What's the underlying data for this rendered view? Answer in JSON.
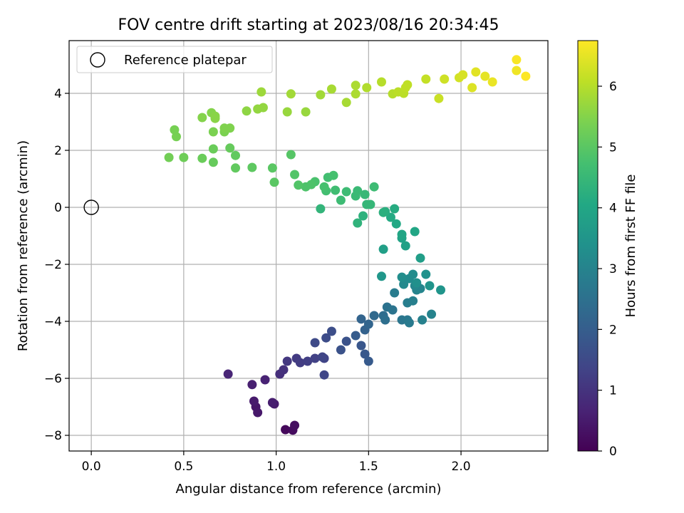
{
  "chart_data": {
    "type": "scatter",
    "title": "FOV centre drift starting at 2023/08/16 20:34:45",
    "xlabel": "Angular distance from reference (arcmin)",
    "ylabel": "Rotation from reference (arcmin)",
    "xlim": [
      -0.12,
      2.47
    ],
    "ylim": [
      -8.55,
      5.85
    ],
    "xticks": [
      0.0,
      0.5,
      1.0,
      1.5,
      2.0
    ],
    "xtick_labels": [
      "0.0",
      "0.5",
      "1.0",
      "1.5",
      "2.0"
    ],
    "yticks": [
      -8,
      -6,
      -4,
      -2,
      0,
      2,
      4
    ],
    "ytick_labels": [
      "−8",
      "−6",
      "−4",
      "−2",
      "0",
      "2",
      "4"
    ],
    "grid": true,
    "legend": {
      "position": "top-left",
      "entries": [
        "Reference platepar"
      ]
    },
    "reference_point": {
      "x": 0.0,
      "y": 0.0,
      "label": "Reference platepar"
    },
    "colorbar": {
      "label": "Hours from first FF file",
      "range": [
        0,
        6.75
      ],
      "ticks": [
        0,
        1,
        2,
        3,
        4,
        5,
        6
      ],
      "tick_labels": [
        "0",
        "1",
        "2",
        "3",
        "4",
        "5",
        "6"
      ],
      "colormap": "viridis"
    },
    "series": [
      {
        "points": [
          [
            1.05,
            -7.8,
            0.15
          ],
          [
            1.09,
            -7.82,
            0.2
          ],
          [
            1.1,
            -7.65,
            0.25
          ],
          [
            0.89,
            -7.0,
            0.4
          ],
          [
            0.9,
            -7.2,
            0.45
          ],
          [
            0.88,
            -6.8,
            0.5
          ],
          [
            0.99,
            -6.9,
            0.5
          ],
          [
            0.98,
            -6.85,
            0.55
          ],
          [
            0.87,
            -6.22,
            0.6
          ],
          [
            0.94,
            -6.05,
            0.65
          ],
          [
            0.74,
            -5.85,
            0.7
          ],
          [
            1.02,
            -5.85,
            0.9
          ],
          [
            1.04,
            -5.7,
            0.95
          ],
          [
            1.06,
            -5.4,
            1.1
          ],
          [
            1.11,
            -5.3,
            1.15
          ],
          [
            1.13,
            -5.45,
            1.2
          ],
          [
            1.17,
            -5.4,
            1.25
          ],
          [
            1.21,
            -5.3,
            1.3
          ],
          [
            1.26,
            -5.3,
            1.35
          ],
          [
            1.26,
            -5.88,
            1.4
          ],
          [
            1.25,
            -5.25,
            1.4
          ],
          [
            1.21,
            -4.75,
            1.5
          ],
          [
            1.27,
            -4.58,
            1.55
          ],
          [
            1.3,
            -4.35,
            1.6
          ],
          [
            1.35,
            -5.0,
            1.7
          ],
          [
            1.38,
            -4.7,
            1.7
          ],
          [
            1.46,
            -4.85,
            1.8
          ],
          [
            1.48,
            -5.15,
            1.85
          ],
          [
            1.5,
            -5.4,
            1.9
          ],
          [
            1.43,
            -4.5,
            1.95
          ],
          [
            1.48,
            -4.3,
            2.1
          ],
          [
            1.46,
            -3.92,
            2.15
          ],
          [
            1.5,
            -4.1,
            2.2
          ],
          [
            1.53,
            -3.8,
            2.3
          ],
          [
            1.58,
            -3.8,
            2.4
          ],
          [
            1.59,
            -3.95,
            2.45
          ],
          [
            1.6,
            -3.5,
            2.55
          ],
          [
            1.63,
            -3.6,
            2.6
          ],
          [
            1.68,
            -3.95,
            2.65
          ],
          [
            1.71,
            -3.95,
            2.7
          ],
          [
            1.72,
            -4.05,
            2.75
          ],
          [
            1.64,
            -3.0,
            2.8
          ],
          [
            1.71,
            -3.35,
            2.85
          ],
          [
            1.74,
            -3.28,
            2.9
          ],
          [
            1.79,
            -3.95,
            2.95
          ],
          [
            1.84,
            -3.75,
            3.0
          ],
          [
            1.76,
            -2.9,
            3.0
          ],
          [
            1.78,
            -2.85,
            3.05
          ],
          [
            1.75,
            -2.75,
            3.1
          ],
          [
            1.69,
            -2.7,
            3.15
          ],
          [
            1.72,
            -2.5,
            3.2
          ],
          [
            1.74,
            -2.35,
            3.25
          ],
          [
            1.68,
            -2.45,
            3.3
          ],
          [
            1.76,
            -2.65,
            3.35
          ],
          [
            1.81,
            -2.35,
            3.4
          ],
          [
            1.83,
            -2.75,
            3.45
          ],
          [
            1.89,
            -2.9,
            3.5
          ],
          [
            1.57,
            -2.42,
            3.55
          ],
          [
            1.78,
            -1.78,
            3.75
          ],
          [
            1.58,
            -1.47,
            3.8
          ],
          [
            1.7,
            -1.35,
            3.85
          ],
          [
            1.68,
            -1.08,
            3.9
          ],
          [
            1.68,
            -0.95,
            3.95
          ],
          [
            1.75,
            -0.85,
            4.0
          ],
          [
            1.65,
            -0.58,
            4.05
          ],
          [
            1.62,
            -0.35,
            4.1
          ],
          [
            1.64,
            -0.05,
            4.15
          ],
          [
            1.59,
            -0.15,
            4.2
          ],
          [
            1.58,
            -0.18,
            4.25
          ],
          [
            1.47,
            -0.3,
            4.3
          ],
          [
            1.44,
            -0.55,
            4.35
          ],
          [
            1.24,
            -0.05,
            4.4
          ],
          [
            1.49,
            0.1,
            4.45
          ],
          [
            1.51,
            0.1,
            4.45
          ],
          [
            1.48,
            0.45,
            4.5
          ],
          [
            1.44,
            0.58,
            4.55
          ],
          [
            1.43,
            0.4,
            4.55
          ],
          [
            1.38,
            0.55,
            4.6
          ],
          [
            1.35,
            0.25,
            4.6
          ],
          [
            1.53,
            0.72,
            4.6
          ],
          [
            1.32,
            0.6,
            4.65
          ],
          [
            1.27,
            0.58,
            4.7
          ],
          [
            1.28,
            1.05,
            4.7
          ],
          [
            1.31,
            1.12,
            4.75
          ],
          [
            1.26,
            0.72,
            4.75
          ],
          [
            1.21,
            0.9,
            4.8
          ],
          [
            1.19,
            0.8,
            4.85
          ],
          [
            1.16,
            0.72,
            4.85
          ],
          [
            1.12,
            0.78,
            4.9
          ],
          [
            1.1,
            1.15,
            4.9
          ],
          [
            1.08,
            1.85,
            4.95
          ],
          [
            0.99,
            0.88,
            5.0
          ],
          [
            0.98,
            1.38,
            5.0
          ],
          [
            0.87,
            1.4,
            5.05
          ],
          [
            0.78,
            1.82,
            5.1
          ],
          [
            0.78,
            1.38,
            5.1
          ],
          [
            0.75,
            2.08,
            5.15
          ],
          [
            0.66,
            1.58,
            5.15
          ],
          [
            0.66,
            2.05,
            5.2
          ],
          [
            0.6,
            1.72,
            5.2
          ],
          [
            0.5,
            1.75,
            5.25
          ],
          [
            0.42,
            1.75,
            5.3
          ],
          [
            0.46,
            2.48,
            5.35
          ],
          [
            0.45,
            2.72,
            5.35
          ],
          [
            0.66,
            2.65,
            5.4
          ],
          [
            0.72,
            2.65,
            5.4
          ],
          [
            0.72,
            2.78,
            5.45
          ],
          [
            0.75,
            2.78,
            5.45
          ],
          [
            0.6,
            3.15,
            5.5
          ],
          [
            0.65,
            3.32,
            5.5
          ],
          [
            0.67,
            3.2,
            5.55
          ],
          [
            0.67,
            3.12,
            5.55
          ],
          [
            0.84,
            3.38,
            5.6
          ],
          [
            0.9,
            3.45,
            5.65
          ],
          [
            0.93,
            3.5,
            5.65
          ],
          [
            1.06,
            3.35,
            5.7
          ],
          [
            1.16,
            3.35,
            5.7
          ],
          [
            0.92,
            4.05,
            5.75
          ],
          [
            1.08,
            3.98,
            5.8
          ],
          [
            1.24,
            3.95,
            5.8
          ],
          [
            1.3,
            4.15,
            5.85
          ],
          [
            1.38,
            3.68,
            5.85
          ],
          [
            1.43,
            4.28,
            5.9
          ],
          [
            1.43,
            3.98,
            5.9
          ],
          [
            1.49,
            4.2,
            5.95
          ],
          [
            1.57,
            4.4,
            6.0
          ],
          [
            1.63,
            3.98,
            6.0
          ],
          [
            1.66,
            4.05,
            6.05
          ],
          [
            1.69,
            4.0,
            6.05
          ],
          [
            1.7,
            4.2,
            6.1
          ],
          [
            1.71,
            4.3,
            6.1
          ],
          [
            1.81,
            4.5,
            6.15
          ],
          [
            1.88,
            3.82,
            6.2
          ],
          [
            1.91,
            4.5,
            6.25
          ],
          [
            1.99,
            4.55,
            6.3
          ],
          [
            2.01,
            4.65,
            6.35
          ],
          [
            2.06,
            4.2,
            6.4
          ],
          [
            2.08,
            4.75,
            6.45
          ],
          [
            2.13,
            4.6,
            6.5
          ],
          [
            2.17,
            4.4,
            6.55
          ],
          [
            2.3,
            4.8,
            6.6
          ],
          [
            2.3,
            5.18,
            6.7
          ],
          [
            2.35,
            4.6,
            6.75
          ]
        ]
      }
    ]
  }
}
